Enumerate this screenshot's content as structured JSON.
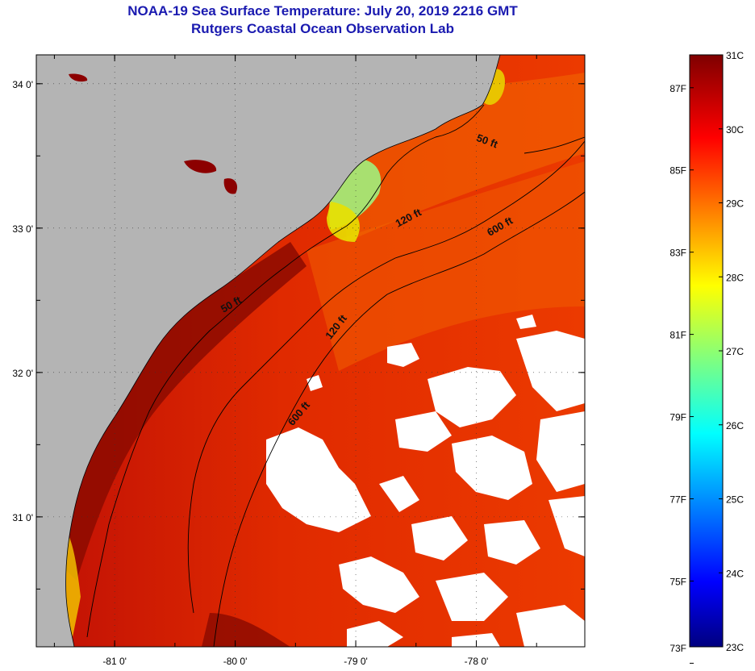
{
  "title": {
    "line1": "NOAA-19 Sea Surface Temperature:  July 20, 2019 2216 GMT",
    "line2": "Rutgers Coastal Ocean Observation Lab"
  },
  "map": {
    "lon_range": [
      -81.65,
      -77.1
    ],
    "lat_range": [
      30.1,
      34.2
    ],
    "lon_ticks": [
      {
        "value": -81,
        "label": "-81 0'"
      },
      {
        "value": -80,
        "label": "-80 0'"
      },
      {
        "value": -79,
        "label": "-79 0'"
      },
      {
        "value": -78,
        "label": "-78 0'"
      }
    ],
    "lat_ticks": [
      {
        "value": 34,
        "label": "34 0'"
      },
      {
        "value": 33,
        "label": "33 0'"
      },
      {
        "value": 32,
        "label": "32 0'"
      },
      {
        "value": 31,
        "label": "31 0'"
      }
    ],
    "contour_labels": [
      {
        "text": "50 ft",
        "lon": -77.92,
        "lat": 33.58,
        "angle": 20
      },
      {
        "text": "50 ft",
        "lon": -80.02,
        "lat": 32.45,
        "angle": -30
      },
      {
        "text": "120 ft",
        "lon": -78.55,
        "lat": 33.05,
        "angle": -28
      },
      {
        "text": "120 ft",
        "lon": -79.14,
        "lat": 32.3,
        "angle": -52
      },
      {
        "text": "600 ft",
        "lon": -77.79,
        "lat": 32.99,
        "angle": -30
      },
      {
        "text": "600 ft",
        "lon": -79.45,
        "lat": 31.7,
        "angle": -50
      }
    ],
    "colors": {
      "land": "#b4b4b4",
      "cloud": "#ffffff",
      "ocean_offshore": "#e83200",
      "ocean_shelf": "#d61a0a",
      "ocean_nearshore": "#8c0000",
      "cool_plume": "#a8e070"
    }
  },
  "colorbar": {
    "range_c": [
      23,
      31
    ],
    "celsius_labels": [
      "31C",
      "30C",
      "29C",
      "28C",
      "27C",
      "26C",
      "25C",
      "24C",
      "23C"
    ],
    "fahrenheit_labels": [
      "87F",
      "85F",
      "83F",
      "81F",
      "79F",
      "77F",
      "75F",
      "73F"
    ],
    "fahrenheit_values": [
      87,
      85,
      83,
      81,
      79,
      77,
      75,
      73
    ]
  }
}
